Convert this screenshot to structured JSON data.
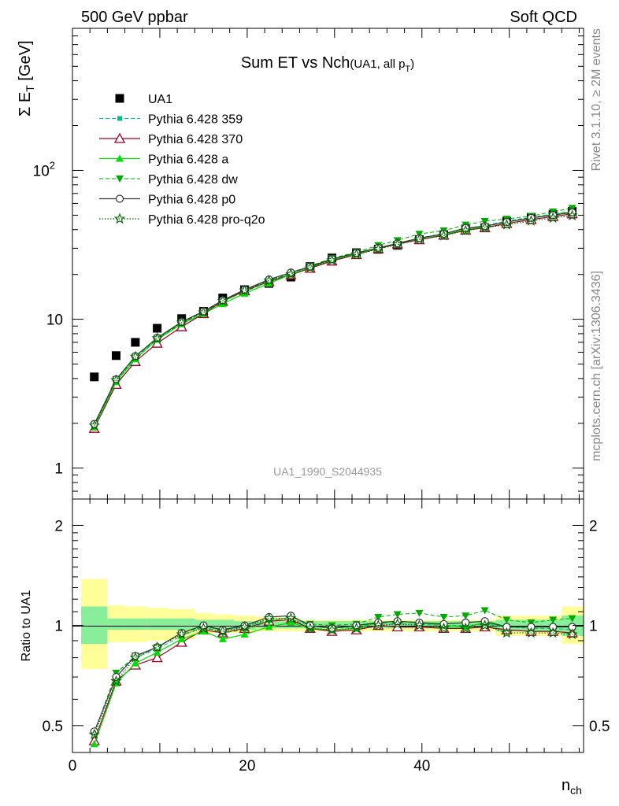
{
  "header": {
    "left": "500 GeV ppbar",
    "right": "Soft QCD"
  },
  "side": {
    "rivet": "Rivet 3.1.10, ≥ 2M events",
    "mcplots": "mcplots.cern.ch [arXiv:1306.3436]"
  },
  "watermark": "UA1_1990_S2044935",
  "main_title": {
    "main": "Sum ET vs Nch",
    "sub": "(UA1, all p",
    "sub_index": "T",
    "sub_end": ")"
  },
  "axis_text": {
    "ylabel_main_prefix": "Σ E",
    "ylabel_main_sub": "T",
    "ylabel_main_suffix": " [GeV]",
    "ylabel_ratio": "Ratio to UA1",
    "xlabel": "n",
    "xlabel_sub": "ch"
  },
  "chart_data": [
    {
      "type": "scatter",
      "panel": "main",
      "title": "Sum ET vs Nch(UA1, all pT)",
      "xlabel": "nch",
      "ylabel": "Σ ET [GeV]",
      "xlim": [
        0,
        58.5
      ],
      "ylim": [
        0.62,
        900
      ],
      "yscale": "log",
      "x_ticks": [
        "0",
        "20",
        "40"
      ],
      "y_ticks": [
        {
          "value": 1,
          "label": "1"
        },
        {
          "value": 10,
          "label": "10"
        },
        {
          "value": 100,
          "label": "10",
          "sup": "2"
        }
      ],
      "legend_position": "top-left",
      "x": [
        2.5,
        5,
        7.2,
        9.7,
        12.5,
        15,
        17.2,
        19.7,
        22.5,
        25,
        27.2,
        29.7,
        32.5,
        35,
        37.2,
        39.7,
        42.5,
        45,
        47.2,
        49.7,
        52.5,
        55,
        57.2
      ],
      "series": [
        {
          "name": "UA1",
          "style": "data",
          "color": "#000000",
          "values": [
            4.1,
            5.7,
            7.0,
            8.7,
            10.1,
            11.3,
            13.9,
            15.8,
            17.4,
            19.2,
            22.6,
            25.8,
            28.0,
            29.5,
            31.4,
            34.3,
            37.0,
            40.4,
            41.2,
            45.5,
            48.4,
            50.6,
            53.0
          ]
        },
        {
          "name": "Pythia 6.428 359",
          "style": "dashed-square",
          "color": "#00bb88",
          "values": [
            1.95,
            3.85,
            5.55,
            7.35,
            9.45,
            11.3,
            13.4,
            15.6,
            18.2,
            20.4,
            22.7,
            25.3,
            27.6,
            30.0,
            32.2,
            35.2,
            37.6,
            40.8,
            42.5,
            45.8,
            48.3,
            51.1,
            53.1
          ]
        },
        {
          "name": "Pythia 6.428 370",
          "style": "solid-triangle-open",
          "color": "#990022",
          "values": [
            1.85,
            3.65,
            5.2,
            6.9,
            8.9,
            10.9,
            13.2,
            15.5,
            17.9,
            19.9,
            22.0,
            24.6,
            27.2,
            29.8,
            32.0,
            34.2,
            36.7,
            39.7,
            41.2,
            44.0,
            46.7,
            49.0,
            51.0
          ]
        },
        {
          "name": "Pythia 6.428 a",
          "style": "solid-triangle-filled",
          "color": "#00dd00",
          "values": [
            1.88,
            3.8,
            5.4,
            7.3,
            9.3,
            10.9,
            12.7,
            14.9,
            17.4,
            20.0,
            22.3,
            25.1,
            27.5,
            30.0,
            32.4,
            35.0,
            37.1,
            40.2,
            42.0,
            45.0,
            47.8,
            50.4,
            52.7
          ]
        },
        {
          "name": "Pythia 6.428 dw",
          "style": "dashed-triangle-down",
          "color": "#00aa00",
          "values": [
            1.95,
            3.95,
            5.6,
            7.5,
            9.4,
            11.2,
            13.2,
            15.3,
            17.9,
            20.3,
            22.8,
            25.7,
            28.2,
            31.4,
            33.9,
            37.4,
            39.4,
            43.1,
            45.6,
            47.2,
            49.3,
            52.8,
            55.8
          ]
        },
        {
          "name": "Pythia 6.428 p0",
          "style": "solid-circle-open",
          "color": "#333333",
          "values": [
            1.98,
            3.95,
            5.65,
            7.5,
            9.6,
            11.3,
            13.4,
            15.8,
            18.5,
            20.6,
            22.6,
            25.4,
            27.9,
            30.2,
            32.3,
            35.0,
            37.5,
            41.0,
            42.2,
            45.0,
            48.0,
            50.0,
            52.2
          ]
        },
        {
          "name": "Pythia 6.428 pro-q2o",
          "style": "dotted-star",
          "color": "#006600",
          "values": [
            1.93,
            3.9,
            5.6,
            7.45,
            9.5,
            11.1,
            13.3,
            15.6,
            18.2,
            20.1,
            22.2,
            24.9,
            27.3,
            29.6,
            31.8,
            34.4,
            36.4,
            39.4,
            41.2,
            43.1,
            45.8,
            47.9,
            49.7
          ]
        }
      ]
    },
    {
      "type": "line",
      "panel": "ratio",
      "ylabel": "Ratio to UA1",
      "xlabel": "nch",
      "xlim": [
        0,
        58.5
      ],
      "ylim": [
        0.415,
        2.4
      ],
      "yscale": "log",
      "y_ticks": [
        {
          "value": 0.5,
          "label": "0.5"
        },
        {
          "value": 1,
          "label": "1"
        },
        {
          "value": 2,
          "label": "2"
        }
      ],
      "bands": {
        "bin_edges": [
          1,
          4,
          6,
          8.5,
          11,
          14,
          16,
          18.5,
          21,
          24,
          26,
          28.5,
          31,
          34,
          36,
          38.5,
          41,
          44,
          46,
          48.5,
          51,
          54,
          56,
          58.5
        ],
        "yellow_low": [
          0.74,
          0.89,
          0.89,
          0.9,
          0.91,
          0.94,
          0.95,
          0.95,
          0.96,
          0.96,
          0.96,
          0.96,
          0.96,
          0.96,
          0.96,
          0.96,
          0.96,
          0.96,
          0.96,
          0.93,
          0.93,
          0.93,
          0.88
        ],
        "yellow_high": [
          1.38,
          1.15,
          1.14,
          1.13,
          1.12,
          1.09,
          1.08,
          1.07,
          1.06,
          1.05,
          1.04,
          1.04,
          1.04,
          1.04,
          1.04,
          1.04,
          1.04,
          1.04,
          1.04,
          1.07,
          1.07,
          1.07,
          1.14
        ],
        "green_low": [
          0.88,
          0.97,
          0.97,
          0.97,
          0.97,
          0.97,
          0.97,
          0.97,
          0.98,
          0.98,
          0.98,
          0.98,
          0.98,
          0.98,
          0.98,
          0.98,
          0.98,
          0.98,
          0.98,
          0.96,
          0.96,
          0.96,
          0.93
        ],
        "green_high": [
          1.14,
          1.05,
          1.05,
          1.05,
          1.05,
          1.04,
          1.04,
          1.03,
          1.03,
          1.03,
          1.03,
          1.03,
          1.03,
          1.03,
          1.03,
          1.03,
          1.03,
          1.03,
          1.03,
          1.04,
          1.04,
          1.04,
          1.07
        ]
      },
      "x": [
        2.5,
        5,
        7.2,
        9.7,
        12.5,
        15,
        17.2,
        19.7,
        22.5,
        25,
        27.2,
        29.7,
        32.5,
        35,
        37.2,
        39.7,
        42.5,
        45,
        47.2,
        49.7,
        52.5,
        55,
        57.2
      ],
      "series": [
        {
          "name": "Pythia 6.428 359",
          "style": "dashed-square",
          "color": "#00bb88",
          "values": [
            0.475,
            0.72,
            0.8,
            0.85,
            0.93,
            0.99,
            0.97,
            0.99,
            1.04,
            1.05,
            1.0,
            0.98,
            0.99,
            1.02,
            1.01,
            1.01,
            1.0,
            1.0,
            1.01,
            0.99,
            0.98,
            0.98,
            0.97
          ]
        },
        {
          "name": "Pythia 6.428 370",
          "style": "solid-triangle-open",
          "color": "#990022",
          "values": [
            0.45,
            0.68,
            0.76,
            0.8,
            0.89,
            0.97,
            0.95,
            0.98,
            1.03,
            1.04,
            0.98,
            0.96,
            0.97,
            1.0,
            0.99,
            0.99,
            0.98,
            0.98,
            0.99,
            0.97,
            0.96,
            0.96,
            0.95
          ]
        },
        {
          "name": "Pythia 6.428 a",
          "style": "solid-triangle-filled",
          "color": "#00dd00",
          "values": [
            0.44,
            0.67,
            0.77,
            0.83,
            0.91,
            0.96,
            0.91,
            0.94,
            0.99,
            1.02,
            0.98,
            0.97,
            0.98,
            1.02,
            1.03,
            1.02,
            1.0,
            0.99,
            1.02,
            0.99,
            0.99,
            0.99,
            0.99
          ]
        },
        {
          "name": "Pythia 6.428 dw",
          "style": "dashed-triangle-down",
          "color": "#00aa00",
          "values": [
            0.475,
            0.72,
            0.81,
            0.86,
            0.95,
            0.99,
            0.95,
            0.97,
            1.03,
            1.06,
            1.01,
            1.0,
            1.01,
            1.06,
            1.08,
            1.09,
            1.06,
            1.07,
            1.11,
            1.04,
            1.02,
            1.04,
            1.05
          ]
        },
        {
          "name": "Pythia 6.428 p0",
          "style": "solid-circle-open",
          "color": "#333333",
          "values": [
            0.48,
            0.7,
            0.81,
            0.86,
            0.95,
            1.0,
            0.97,
            1.0,
            1.06,
            1.07,
            1.0,
            0.98,
            1.0,
            1.02,
            1.03,
            1.02,
            1.01,
            1.02,
            1.03,
            0.99,
            0.99,
            0.99,
            0.99
          ]
        },
        {
          "name": "Pythia 6.428 pro-q2o",
          "style": "dotted-star",
          "color": "#006600",
          "values": [
            0.47,
            0.68,
            0.8,
            0.86,
            0.94,
            0.98,
            0.96,
            0.99,
            1.05,
            1.05,
            0.98,
            0.97,
            0.98,
            1.0,
            1.01,
            1.0,
            0.98,
            0.98,
            1.0,
            0.95,
            0.95,
            0.95,
            0.94
          ]
        }
      ]
    }
  ]
}
